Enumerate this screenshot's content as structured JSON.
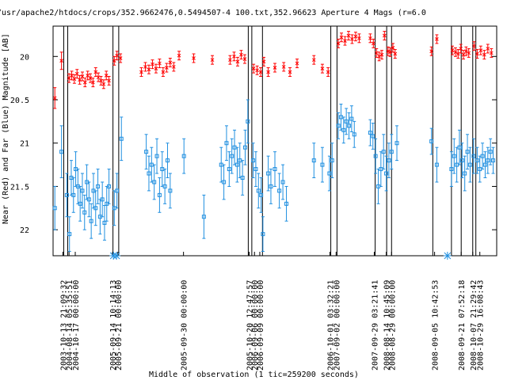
{
  "chart_data": {
    "type": "scatter",
    "title": "/usr/apache2/htdocs/crops/352.9662476,0.5494507-4 100.txt,352.96623    Aperture 4 Mags (r=6.0",
    "xlabel": "Middle of observation (1 tic=259200 seconds)",
    "ylabel": "Near (Red) and Far (Blue) Magnitude [AB]",
    "ylim": [
      22.3,
      19.65
    ],
    "y_reversed": true,
    "y_ticks": [
      20,
      20.5,
      21,
      21.5,
      22
    ],
    "y_tick_labels": [
      "20",
      "20.5",
      "21",
      "21.5",
      "22"
    ],
    "x_range": [
      0,
      100
    ],
    "x_date_labels": [
      {
        "x": 2.2,
        "label": "2003-10-13 21:09:32"
      },
      {
        "x": 3.6,
        "label": "2004-08-14 05:35:51"
      },
      {
        "x": 5.0,
        "label": "2004-10-17 00:00:00"
      },
      {
        "x": 13.4,
        "label": "2005-09-14 10:14:13"
      },
      {
        "x": 14.6,
        "label": "2005-09-21 00:00:00"
      },
      {
        "x": 29.4,
        "label": "2005-09-30 00:00:00"
      },
      {
        "x": 44.2,
        "label": "2005-10-20 12:47:57"
      },
      {
        "x": 45.4,
        "label": "2006-09-06 00:00:00"
      },
      {
        "x": 46.6,
        "label": "2006-09-09 00:00:00"
      },
      {
        "x": 62.4,
        "label": "2006-10-01 03:32:21"
      },
      {
        "x": 63.8,
        "label": "2007-09-02 00:00:00"
      },
      {
        "x": 72.4,
        "label": "2007-09-29 03:21:41"
      },
      {
        "x": 75.1,
        "label": "2008-08-14 10:45:09"
      },
      {
        "x": 76.3,
        "label": "2008-08-29 00:00:00"
      },
      {
        "x": 86.0,
        "label": "2008-09-05 10:42:53"
      },
      {
        "x": 92.0,
        "label": "2008-09-21 07:52:18"
      },
      {
        "x": 94.6,
        "label": "2008-10-07 21:29:42"
      },
      {
        "x": 96.2,
        "label": "2008-10-29 16:08:43"
      }
    ],
    "vertical_lines_x": [
      2.4,
      3.3,
      13.5,
      14.8,
      44.0,
      44.8,
      47.2,
      62.6,
      64.0,
      72.6,
      75.2,
      76.3,
      85.6,
      89.8,
      92.0,
      94.6,
      95.3
    ],
    "grid": false,
    "legend": "none",
    "series": [
      {
        "color": "#ff0000",
        "marker": "x",
        "points": [
          [
            0.4,
            20.48,
            0.12
          ],
          [
            1.9,
            20.05,
            0.1
          ],
          [
            3.6,
            20.25,
            0.05
          ],
          [
            4.2,
            20.22,
            0.05
          ],
          [
            4.8,
            20.26,
            0.05
          ],
          [
            5.4,
            20.2,
            0.05
          ],
          [
            6.0,
            20.27,
            0.05
          ],
          [
            6.6,
            20.23,
            0.05
          ],
          [
            7.2,
            20.3,
            0.05
          ],
          [
            7.8,
            20.22,
            0.05
          ],
          [
            8.4,
            20.25,
            0.05
          ],
          [
            9.0,
            20.3,
            0.05
          ],
          [
            9.6,
            20.18,
            0.05
          ],
          [
            10.2,
            20.24,
            0.05
          ],
          [
            10.8,
            20.28,
            0.05
          ],
          [
            11.4,
            20.32,
            0.05
          ],
          [
            12.0,
            20.22,
            0.05
          ],
          [
            12.6,
            20.28,
            0.05
          ],
          [
            13.8,
            20.05,
            0.05
          ],
          [
            14.4,
            19.99,
            0.05
          ],
          [
            15.2,
            20.02,
            0.05
          ],
          [
            19.9,
            20.18,
            0.05
          ],
          [
            20.8,
            20.12,
            0.05
          ],
          [
            21.6,
            20.15,
            0.05
          ],
          [
            22.4,
            20.09,
            0.05
          ],
          [
            23.2,
            20.14,
            0.05
          ],
          [
            24.0,
            20.08,
            0.05
          ],
          [
            24.8,
            20.18,
            0.05
          ],
          [
            25.6,
            20.13,
            0.05
          ],
          [
            26.4,
            20.07,
            0.05
          ],
          [
            27.2,
            20.12,
            0.05
          ],
          [
            28.4,
            19.99,
            0.05
          ],
          [
            31.7,
            20.02,
            0.05
          ],
          [
            35.9,
            20.04,
            0.05
          ],
          [
            39.9,
            20.04,
            0.05
          ],
          [
            40.8,
            20.0,
            0.05
          ],
          [
            41.6,
            20.06,
            0.05
          ],
          [
            42.4,
            19.98,
            0.05
          ],
          [
            43.2,
            20.03,
            0.05
          ],
          [
            45.2,
            20.14,
            0.05
          ],
          [
            46.0,
            20.16,
            0.05
          ],
          [
            46.8,
            20.18,
            0.05
          ],
          [
            47.5,
            20.06,
            0.05
          ],
          [
            48.5,
            20.18,
            0.05
          ],
          [
            50.0,
            20.13,
            0.05
          ],
          [
            52.0,
            20.12,
            0.05
          ],
          [
            53.4,
            20.18,
            0.05
          ],
          [
            55.0,
            20.08,
            0.05
          ],
          [
            58.8,
            20.04,
            0.05
          ],
          [
            60.7,
            20.14,
            0.05
          ],
          [
            62.0,
            20.18,
            0.05
          ],
          [
            64.3,
            19.85,
            0.05
          ],
          [
            65.0,
            19.78,
            0.05
          ],
          [
            65.8,
            19.82,
            0.05
          ],
          [
            66.6,
            19.76,
            0.05
          ],
          [
            67.4,
            19.8,
            0.05
          ],
          [
            68.2,
            19.77,
            0.05
          ],
          [
            69.0,
            19.79,
            0.05
          ],
          [
            71.5,
            19.79,
            0.05
          ],
          [
            72.2,
            19.85,
            0.05
          ],
          [
            72.9,
            19.96,
            0.05
          ],
          [
            73.5,
            20.0,
            0.05
          ],
          [
            74.1,
            19.98,
            0.05
          ],
          [
            74.7,
            19.76,
            0.05
          ],
          [
            75.5,
            19.94,
            0.05
          ],
          [
            76.0,
            19.95,
            0.05
          ],
          [
            76.6,
            19.9,
            0.05
          ],
          [
            77.1,
            19.97,
            0.05
          ],
          [
            85.3,
            19.94,
            0.05
          ],
          [
            86.5,
            19.8,
            0.05
          ],
          [
            90.0,
            19.93,
            0.05
          ],
          [
            90.7,
            19.95,
            0.05
          ],
          [
            91.3,
            19.97,
            0.05
          ],
          [
            91.9,
            19.91,
            0.05
          ],
          [
            92.5,
            19.98,
            0.05
          ],
          [
            93.1,
            19.94,
            0.05
          ],
          [
            93.7,
            19.96,
            0.05
          ],
          [
            94.9,
            19.88,
            0.05
          ],
          [
            95.6,
            19.97,
            0.05
          ],
          [
            96.4,
            19.93,
            0.05
          ],
          [
            97.2,
            19.98,
            0.05
          ],
          [
            98.0,
            19.91,
            0.05
          ],
          [
            98.8,
            19.96,
            0.05
          ]
        ]
      },
      {
        "color": "#1f8fe0",
        "marker": "square",
        "points": [
          [
            0.4,
            21.75,
            0.25
          ],
          [
            1.9,
            21.1,
            0.3
          ],
          [
            3.1,
            21.6,
            0.25
          ],
          [
            3.7,
            22.05,
            0.2
          ],
          [
            4.1,
            21.4,
            0.2
          ],
          [
            4.6,
            21.6,
            0.2
          ],
          [
            5.1,
            21.3,
            0.2
          ],
          [
            5.6,
            21.5,
            0.2
          ],
          [
            6.1,
            21.7,
            0.2
          ],
          [
            6.6,
            21.55,
            0.2
          ],
          [
            7.1,
            21.8,
            0.2
          ],
          [
            7.6,
            21.45,
            0.2
          ],
          [
            8.1,
            21.65,
            0.2
          ],
          [
            8.6,
            21.9,
            0.2
          ],
          [
            9.1,
            21.55,
            0.2
          ],
          [
            9.6,
            21.75,
            0.2
          ],
          [
            10.1,
            21.5,
            0.2
          ],
          [
            10.6,
            21.85,
            0.2
          ],
          [
            11.1,
            21.65,
            0.2
          ],
          [
            11.6,
            21.92,
            0.2
          ],
          [
            12.1,
            21.7,
            0.2
          ],
          [
            12.6,
            21.5,
            0.2
          ],
          [
            13.8,
            21.75,
            0.2
          ],
          [
            14.4,
            21.55,
            0.2
          ],
          [
            15.4,
            20.95,
            0.25
          ],
          [
            21.0,
            21.1,
            0.2
          ],
          [
            21.6,
            21.35,
            0.2
          ],
          [
            22.2,
            21.25,
            0.2
          ],
          [
            22.8,
            21.45,
            0.2
          ],
          [
            23.4,
            21.15,
            0.2
          ],
          [
            24.0,
            21.6,
            0.2
          ],
          [
            24.6,
            21.3,
            0.2
          ],
          [
            25.2,
            21.5,
            0.2
          ],
          [
            25.8,
            21.2,
            0.2
          ],
          [
            26.4,
            21.55,
            0.2
          ],
          [
            29.5,
            21.15,
            0.2
          ],
          [
            34.0,
            21.85,
            0.25
          ],
          [
            37.9,
            21.25,
            0.2
          ],
          [
            38.5,
            21.45,
            0.2
          ],
          [
            39.1,
            21.0,
            0.2
          ],
          [
            39.7,
            21.3,
            0.2
          ],
          [
            40.3,
            21.15,
            0.2
          ],
          [
            40.9,
            21.05,
            0.2
          ],
          [
            41.5,
            21.25,
            0.2
          ],
          [
            42.1,
            21.2,
            0.2
          ],
          [
            42.7,
            21.4,
            0.2
          ],
          [
            43.3,
            21.05,
            0.2
          ],
          [
            43.9,
            20.75,
            0.25
          ],
          [
            45.1,
            21.2,
            0.2
          ],
          [
            45.7,
            21.3,
            0.2
          ],
          [
            46.3,
            21.55,
            0.2
          ],
          [
            46.9,
            21.6,
            0.2
          ],
          [
            47.3,
            22.05,
            0.2
          ],
          [
            48.5,
            21.35,
            0.2
          ],
          [
            49.1,
            21.5,
            0.2
          ],
          [
            50.0,
            21.3,
            0.2
          ],
          [
            51.0,
            21.55,
            0.2
          ],
          [
            51.8,
            21.45,
            0.2
          ],
          [
            52.6,
            21.7,
            0.2
          ],
          [
            58.8,
            21.2,
            0.2
          ],
          [
            60.7,
            21.25,
            0.2
          ],
          [
            62.3,
            21.35,
            0.2
          ],
          [
            62.9,
            21.2,
            0.2
          ],
          [
            64.3,
            20.8,
            0.15
          ],
          [
            64.9,
            20.7,
            0.15
          ],
          [
            65.5,
            20.85,
            0.15
          ],
          [
            66.1,
            20.75,
            0.15
          ],
          [
            66.7,
            20.8,
            0.15
          ],
          [
            67.3,
            20.72,
            0.15
          ],
          [
            67.9,
            20.9,
            0.15
          ],
          [
            71.5,
            20.88,
            0.15
          ],
          [
            72.1,
            20.92,
            0.15
          ],
          [
            72.7,
            21.15,
            0.2
          ],
          [
            73.3,
            21.5,
            0.2
          ],
          [
            73.9,
            21.3,
            0.2
          ],
          [
            74.5,
            21.1,
            0.2
          ],
          [
            75.1,
            21.35,
            0.2
          ],
          [
            75.7,
            21.2,
            0.2
          ],
          [
            76.3,
            21.1,
            0.2
          ],
          [
            77.5,
            21.0,
            0.2
          ],
          [
            85.3,
            20.98,
            0.15
          ],
          [
            86.5,
            21.25,
            0.2
          ],
          [
            89.8,
            21.3,
            0.2
          ],
          [
            90.4,
            21.15,
            0.2
          ],
          [
            91.0,
            21.25,
            0.2
          ],
          [
            91.6,
            21.05,
            0.2
          ],
          [
            92.2,
            21.2,
            0.2
          ],
          [
            92.8,
            21.35,
            0.2
          ],
          [
            93.4,
            21.1,
            0.2
          ],
          [
            94.0,
            21.25,
            0.2
          ],
          [
            94.8,
            21.15,
            0.2
          ],
          [
            95.6,
            21.2,
            0.15
          ],
          [
            96.2,
            21.3,
            0.15
          ],
          [
            96.8,
            21.15,
            0.15
          ],
          [
            97.4,
            21.25,
            0.15
          ],
          [
            98.0,
            21.2,
            0.15
          ],
          [
            98.6,
            21.1,
            0.15
          ],
          [
            99.2,
            21.2,
            0.15
          ]
        ]
      }
    ],
    "bottom_markers": [
      {
        "x": 13.6,
        "symbol": "asterisk"
      },
      {
        "x": 14.3,
        "symbol": "asterisk"
      },
      {
        "x": 88.9,
        "symbol": "asterisk"
      }
    ],
    "colors": {
      "red": "#ff0000",
      "blue": "#1f8fe0",
      "axis": "#000000"
    }
  }
}
